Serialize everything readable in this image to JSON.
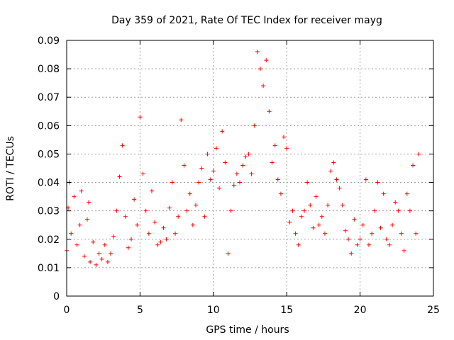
{
  "chart_data": {
    "type": "scatter",
    "title": "Day 359 of 2021, Rate Of TEC Index for receiver mayg",
    "xlabel": "GPS time / hours",
    "ylabel": "ROTI / TECUs",
    "xlim": [
      0,
      25
    ],
    "ylim": [
      0,
      0.09
    ],
    "xticks": [
      0,
      5,
      10,
      15,
      20,
      25
    ],
    "xtick_labels": [
      "0",
      "5",
      "10",
      "15",
      "20",
      "25"
    ],
    "yticks": [
      0,
      0.01,
      0.02,
      0.03,
      0.04,
      0.05,
      0.06,
      0.07,
      0.08,
      0.09
    ],
    "ytick_labels": [
      "0",
      "0.01",
      "0.02",
      "0.03",
      "0.04",
      "0.05",
      "0.06",
      "0.07",
      "0.08",
      "0.09"
    ],
    "grid": true,
    "legend": "none",
    "marker": "plus",
    "color": "#ff0000",
    "series": [
      {
        "x": [
          0.0,
          0.1,
          0.2,
          0.3,
          0.5,
          0.7,
          0.9,
          1.0,
          1.2,
          1.4,
          1.5,
          1.6,
          1.8,
          2.0,
          2.2,
          2.4,
          2.6,
          2.8,
          3.0,
          3.2,
          3.4,
          3.6,
          3.8,
          4.0,
          4.2,
          4.4,
          4.6,
          4.8,
          5.0,
          5.2,
          5.4,
          5.6,
          5.8,
          6.0,
          6.2,
          6.4,
          6.6,
          6.8,
          7.0,
          7.2,
          7.4,
          7.6,
          7.8,
          8.0,
          8.2,
          8.4,
          8.6,
          8.8,
          9.0,
          9.2,
          9.4,
          9.6,
          9.8,
          10.0,
          10.2,
          10.4,
          10.6,
          10.8,
          11.0,
          11.2,
          11.4,
          11.6,
          11.8,
          12.0,
          12.2,
          12.4,
          12.6,
          12.8,
          13.0,
          13.2,
          13.4,
          13.6,
          13.8,
          14.0,
          14.2,
          14.4,
          14.6,
          14.8,
          15.0,
          15.2,
          15.4,
          15.6,
          15.8,
          16.0,
          16.2,
          16.4,
          16.6,
          16.8,
          17.0,
          17.2,
          17.4,
          17.6,
          17.8,
          18.0,
          18.2,
          18.4,
          18.6,
          18.8,
          19.0,
          19.2,
          19.4,
          19.6,
          19.8,
          20.0,
          20.2,
          20.4,
          20.6,
          20.8,
          21.0,
          21.2,
          21.4,
          21.6,
          21.8,
          22.0,
          22.2,
          22.4,
          22.6,
          22.8,
          23.0,
          23.2,
          23.4,
          23.6,
          23.8,
          24.0
        ],
        "y": [
          0.016,
          0.031,
          0.04,
          0.022,
          0.035,
          0.018,
          0.025,
          0.037,
          0.014,
          0.027,
          0.033,
          0.012,
          0.019,
          0.011,
          0.015,
          0.013,
          0.018,
          0.012,
          0.015,
          0.021,
          0.03,
          0.042,
          0.053,
          0.028,
          0.017,
          0.02,
          0.034,
          0.025,
          0.063,
          0.043,
          0.03,
          0.022,
          0.037,
          0.026,
          0.018,
          0.019,
          0.024,
          0.02,
          0.031,
          0.04,
          0.022,
          0.028,
          0.062,
          0.046,
          0.03,
          0.036,
          0.025,
          0.032,
          0.04,
          0.045,
          0.028,
          0.05,
          0.041,
          0.044,
          0.052,
          0.038,
          0.058,
          0.047,
          0.015,
          0.03,
          0.039,
          0.043,
          0.04,
          0.046,
          0.049,
          0.05,
          0.043,
          0.06,
          0.086,
          0.08,
          0.074,
          0.083,
          0.065,
          0.047,
          0.053,
          0.041,
          0.036,
          0.056,
          0.052,
          0.026,
          0.03,
          0.022,
          0.018,
          0.028,
          0.03,
          0.04,
          0.032,
          0.024,
          0.035,
          0.025,
          0.028,
          0.022,
          0.032,
          0.044,
          0.047,
          0.041,
          0.038,
          0.032,
          0.023,
          0.02,
          0.015,
          0.027,
          0.018,
          0.02,
          0.025,
          0.041,
          0.018,
          0.022,
          0.03,
          0.04,
          0.024,
          0.036,
          0.02,
          0.018,
          0.025,
          0.033,
          0.03,
          0.022,
          0.016,
          0.036,
          0.03,
          0.046,
          0.022,
          0.05
        ]
      }
    ]
  }
}
